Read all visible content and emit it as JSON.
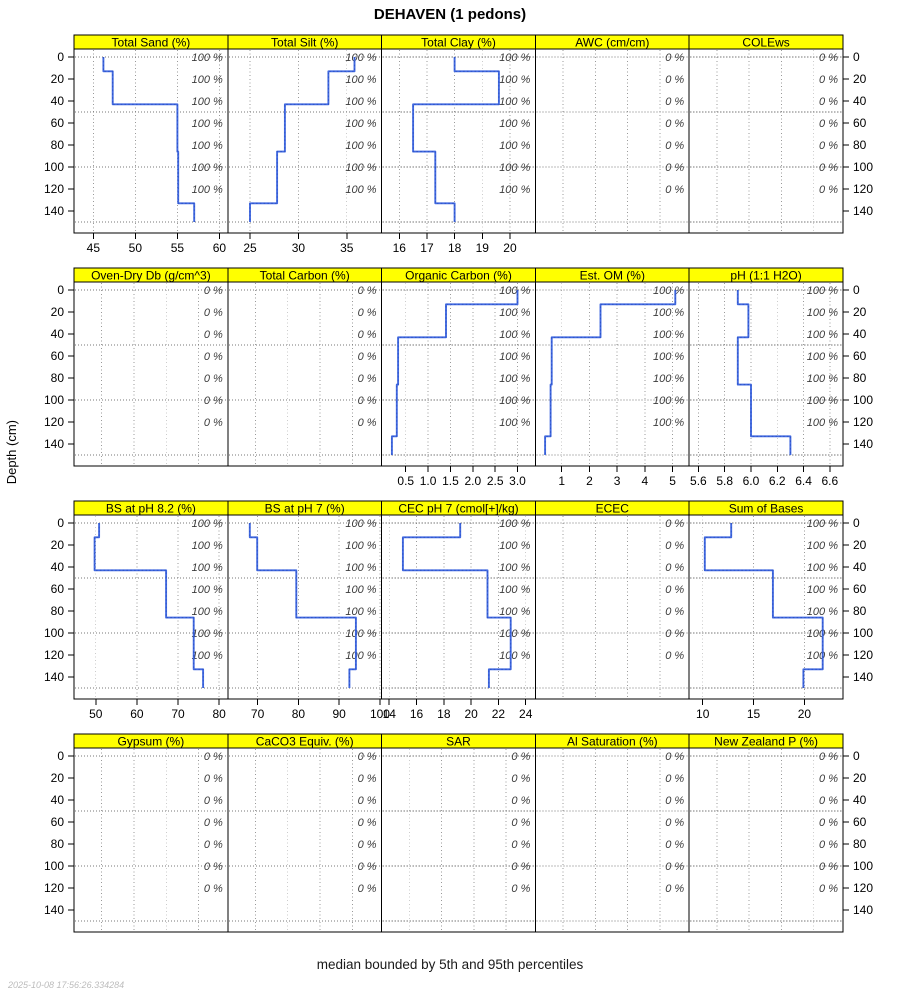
{
  "title": "DEHAVEN (1 pedons)",
  "caption": "median bounded by 5th and 95th percentiles",
  "timestamp": "2025-10-08 17:56:26.334284",
  "depth_axis_label": "Depth (cm)",
  "colors": {
    "strip_bg": "#ffff00",
    "strip_border": "#000000",
    "panel_border": "#000000",
    "profile_line": "#4169e1",
    "profile_dash": "#2f55c8",
    "gridline": "#999999",
    "ref_line": "#777777",
    "cf_text": "#3c3c3c",
    "timestamp_text": "#bcbcbc"
  },
  "chart_data": {
    "type": "line",
    "subtype": "soil-aggregate-depth-profiles",
    "series_name": "DEHAVEN",
    "pedon_count": 1,
    "depth_unit": "cm",
    "ylabel": "Depth (cm)",
    "horizon_boundaries_cm": [
      0,
      13,
      43,
      86,
      133,
      150
    ],
    "depth_ticks": [
      0,
      20,
      40,
      60,
      80,
      100,
      120,
      140
    ],
    "reference_depths": [
      0,
      50,
      100,
      150
    ],
    "contributing_fraction_depths": [
      0,
      20,
      40,
      60,
      80,
      100,
      120
    ],
    "rows": [
      [
        {
          "label": "Total Sand (%)",
          "xlim": [
            42.7,
            61.0
          ],
          "xticks": [
            45,
            50,
            55,
            60
          ],
          "xtick_labels": [
            "45",
            "50",
            "55",
            "60"
          ],
          "values": [
            46.2,
            47.3,
            55.0,
            55.1,
            57.0
          ],
          "cf_label": "100 %"
        },
        {
          "label": "Total Silt (%)",
          "xlim": [
            22.7,
            38.6
          ],
          "xticks": [
            25,
            30,
            35
          ],
          "xtick_labels": [
            "25",
            "30",
            "35"
          ],
          "values": [
            35.8,
            33.1,
            28.6,
            27.8,
            25.0
          ],
          "cf_label": "100 %"
        },
        {
          "label": "Total Clay (%)",
          "xlim": [
            15.36,
            20.92
          ],
          "xticks": [
            16,
            17,
            18,
            19,
            20
          ],
          "xtick_labels": [
            "16",
            "17",
            "18",
            "19",
            "20"
          ],
          "values": [
            18.0,
            19.6,
            16.5,
            17.3,
            18.0
          ],
          "cf_label": "100 %"
        },
        {
          "label": "AWC (cm/cm)",
          "xlim": null,
          "xticks": [],
          "xtick_labels": [],
          "values": null,
          "cf_label": "0 %"
        },
        {
          "label": "COLEws",
          "xlim": null,
          "xticks": [],
          "xtick_labels": [],
          "values": null,
          "cf_label": "0 %"
        }
      ],
      [
        {
          "label": "Oven-Dry Db (g/cm^3)",
          "xlim": null,
          "xticks": [],
          "xtick_labels": [],
          "values": null,
          "cf_label": "0 %"
        },
        {
          "label": "Total Carbon (%)",
          "xlim": null,
          "xticks": [],
          "xtick_labels": [],
          "values": null,
          "cf_label": "0 %"
        },
        {
          "label": "Organic Carbon (%)",
          "xlim": [
            -0.04,
            3.4
          ],
          "xticks": [
            0.5,
            1.0,
            1.5,
            2.0,
            2.5,
            3.0
          ],
          "xtick_labels": [
            "0.5",
            "1.0",
            "1.5",
            "2.0",
            "2.5",
            "3.0"
          ],
          "values": [
            3.0,
            1.4,
            0.33,
            0.3,
            0.19
          ],
          "cf_label": "100 %"
        },
        {
          "label": "Est. OM (%)",
          "xlim": [
            0.05,
            5.6
          ],
          "xticks": [
            1,
            2,
            3,
            4,
            5
          ],
          "xtick_labels": [
            "1",
            "2",
            "3",
            "4",
            "5"
          ],
          "values": [
            5.1,
            2.4,
            0.64,
            0.6,
            0.4
          ],
          "cf_label": "100 %"
        },
        {
          "label": "pH (1:1 H2O)",
          "xlim": [
            5.53,
            6.7
          ],
          "xticks": [
            5.6,
            5.8,
            6.0,
            6.2,
            6.4,
            6.6
          ],
          "xtick_labels": [
            "5.6",
            "5.8",
            "6.0",
            "6.2",
            "6.4",
            "6.6"
          ],
          "values": [
            5.9,
            5.98,
            5.9,
            6.0,
            6.3
          ],
          "cf_label": "100 %"
        }
      ],
      [
        {
          "label": "BS at pH 8.2 (%)",
          "xlim": [
            44.7,
            82.1
          ],
          "xticks": [
            50,
            60,
            70,
            80
          ],
          "xtick_labels": [
            "50",
            "60",
            "70",
            "80"
          ],
          "values": [
            50.8,
            49.7,
            67.1,
            73.8,
            76.1
          ],
          "cf_label": "100 %"
        },
        {
          "label": "BS at pH 7 (%)",
          "xlim": [
            62.7,
            100.4
          ],
          "xticks": [
            70,
            80,
            90,
            100
          ],
          "xtick_labels": [
            "70",
            "80",
            "90",
            "100"
          ],
          "values": [
            68.1,
            69.9,
            79.5,
            94.1,
            92.5
          ],
          "cf_label": "100 %"
        },
        {
          "label": "CEC pH 7 (cmol[+]/kg)",
          "xlim": [
            13.44,
            24.71
          ],
          "xticks": [
            14,
            16,
            18,
            20,
            22,
            24
          ],
          "xtick_labels": [
            "14",
            "16",
            "18",
            "20",
            "22",
            "24"
          ],
          "values": [
            19.2,
            15.0,
            21.2,
            22.9,
            21.3
          ],
          "cf_label": "100 %"
        },
        {
          "label": "ECEC",
          "xlim": null,
          "xticks": [],
          "xtick_labels": [],
          "values": null,
          "cf_label": "0 %"
        },
        {
          "label": "Sum of Bases",
          "xlim": [
            8.67,
            23.8
          ],
          "xticks": [
            10,
            15,
            20
          ],
          "xtick_labels": [
            "10",
            "15",
            "20"
          ],
          "values": [
            12.8,
            10.2,
            16.9,
            21.8,
            19.9
          ],
          "cf_label": "100 %"
        }
      ],
      [
        {
          "label": "Gypsum (%)",
          "xlim": null,
          "xticks": [],
          "xtick_labels": [],
          "values": null,
          "cf_label": "0 %"
        },
        {
          "label": "CaCO3 Equiv. (%)",
          "xlim": null,
          "xticks": [],
          "xtick_labels": [],
          "values": null,
          "cf_label": "0 %"
        },
        {
          "label": "SAR",
          "xlim": null,
          "xticks": [],
          "xtick_labels": [],
          "values": null,
          "cf_label": "0 %"
        },
        {
          "label": "Al Saturation (%)",
          "xlim": null,
          "xticks": [],
          "xtick_labels": [],
          "values": null,
          "cf_label": "0 %"
        },
        {
          "label": "New Zealand P (%)",
          "xlim": null,
          "xticks": [],
          "xtick_labels": [],
          "values": null,
          "cf_label": "0 %"
        }
      ]
    ]
  }
}
